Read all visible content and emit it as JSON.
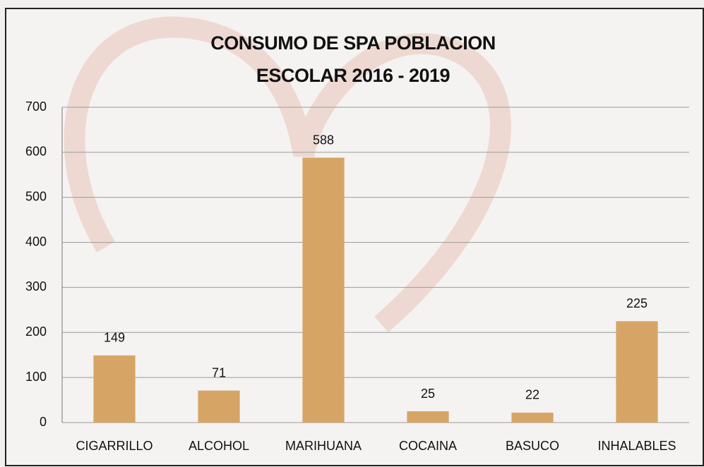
{
  "chart_data": {
    "type": "bar",
    "title": "CONSUMO DE SPA POBLACION ESCOLAR 2016 - 2019",
    "categories": [
      "CIGARRILLO",
      "ALCOHOL",
      "MARIHUANA",
      "COCAINA",
      "BASUCO",
      "INHALABLES"
    ],
    "values": [
      149,
      71,
      588,
      25,
      22,
      225
    ],
    "color": "#d6a565",
    "ylim": [
      0,
      700
    ],
    "yticks": [
      0,
      100,
      200,
      300,
      400,
      500,
      600,
      700
    ],
    "grid": true
  }
}
